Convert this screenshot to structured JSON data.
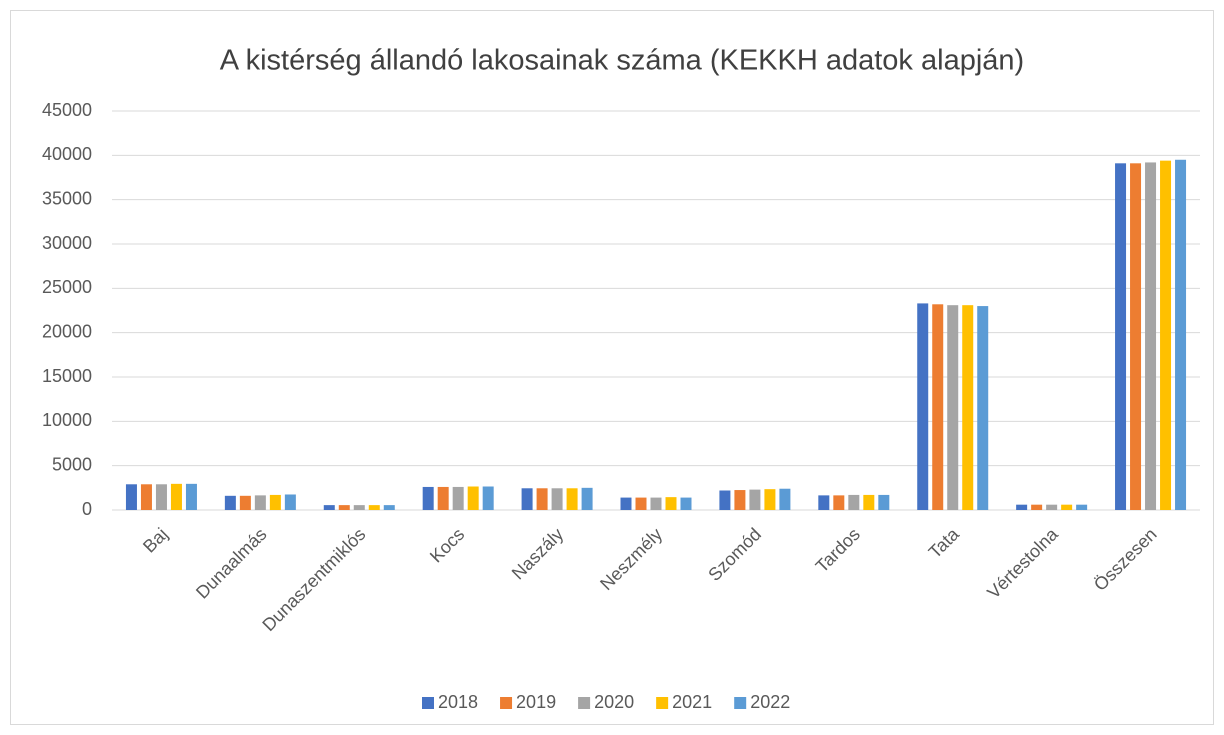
{
  "chart_data": {
    "type": "bar",
    "title": "A kistérség állandó lakosainak száma (KEKKH adatok alapján)",
    "categories": [
      "Baj",
      "Dunaalmás",
      "Dunaszentmiklós",
      "Kocs",
      "Naszály",
      "Neszmély",
      "Szomód",
      "Tardos",
      "Tata",
      "Vértestolna",
      "Összesen"
    ],
    "series": [
      {
        "name": "2018",
        "color": "#4472c4",
        "values": [
          2900,
          1600,
          550,
          2600,
          2450,
          1400,
          2200,
          1650,
          23300,
          600,
          39100
        ]
      },
      {
        "name": "2019",
        "color": "#ed7d31",
        "values": [
          2900,
          1600,
          550,
          2600,
          2450,
          1400,
          2250,
          1650,
          23200,
          600,
          39100
        ]
      },
      {
        "name": "2020",
        "color": "#a5a5a5",
        "values": [
          2900,
          1650,
          550,
          2600,
          2450,
          1400,
          2300,
          1700,
          23100,
          600,
          39200
        ]
      },
      {
        "name": "2021",
        "color": "#ffc000",
        "values": [
          2950,
          1700,
          550,
          2650,
          2450,
          1450,
          2350,
          1700,
          23100,
          600,
          39400
        ]
      },
      {
        "name": "2022",
        "color": "#5b9bd5",
        "values": [
          2950,
          1750,
          550,
          2650,
          2500,
          1400,
          2400,
          1700,
          23000,
          600,
          39500
        ]
      }
    ],
    "ylim": [
      0,
      45000
    ],
    "yticks": [
      0,
      5000,
      10000,
      15000,
      20000,
      25000,
      30000,
      35000,
      40000,
      45000
    ],
    "grid": true,
    "legend": "bottom"
  }
}
